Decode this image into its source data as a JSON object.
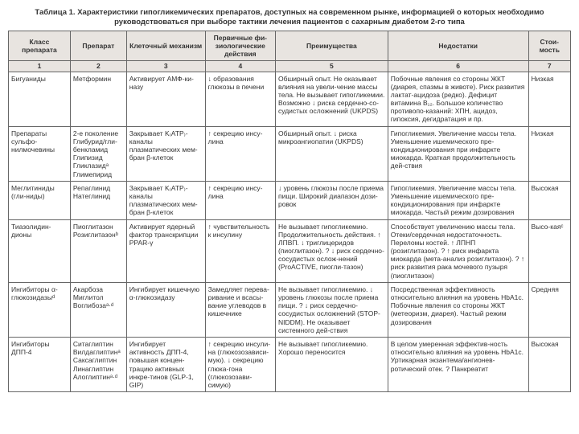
{
  "title_line1": "Таблица 1. Характеристики гипогликемических препаратов, доступных на современном рынке, информацией о которых необходимо",
  "title_line2": "руководствоваться при выборе тактики лечения пациентов с сахарным диабетом 2-го типа",
  "headers": {
    "c1": "Класс препарата",
    "c2": "Препарат",
    "c3": "Клеточный механизм",
    "c4": "Первичные фи-\nзиологические\nдействия",
    "c5": "Преимущества",
    "c6": "Недостатки",
    "c7": "Стои-\nмость"
  },
  "numrow": [
    "1",
    "2",
    "3",
    "4",
    "5",
    "6",
    "7"
  ],
  "rows": [
    {
      "c1": "Бигуаниды",
      "c2": "Метформин",
      "c3": "Активирует АМФ-ки-назу",
      "c4": "↓ образования глюкозы в печени",
      "c5": "Обширный опыт.\nНе оказывает влияния на увели-чение массы тела.\nНе вызывает гипогликемии.\nВозможно ↓ риска сердечно-со-судистых осложнений (UKPDS)",
      "c6": "Побочные явления со стороны ЖКТ (диарея, спазмы в животе).\nРиск развития лактат-ацидоза (редко).\nДефицит витамина B₁₂.\nБольшое количество противопо-казаний: ХПН, ацидоз, гипоксия, дегидратация и пр.",
      "c7": "Низкая"
    },
    {
      "c1": "Препараты сульфо-нилмочевины",
      "c2": "2-е поколение\nГлибурид/гли-бенкламид\nГлипизид\nГликлазидᵃ\nГлимепирид",
      "c3": "Закрывает K₍ATP₎-каналы плазматических мем-бран β-клеток",
      "c4": "↑ секрецию инсу-лина",
      "c5": "Обширный опыт.\n↓ риска микроангиопатии (UKPDS)",
      "c6": "Гипогликемия.\nУвеличение массы тела.\nУменьшение ишемического пре-кондиционирования при инфаркте миокарда.\nКраткая продолжительность дей-ствия",
      "c7": "Низкая"
    },
    {
      "c1": "Меглитиниды (гли-ниды)",
      "c2": "Репаглинид\nНатеглинид",
      "c3": "Закрывает K₍ATP₎-каналы плазматических мем-бран β-клеток",
      "c4": "↑ секрецию инсу-лина",
      "c5": "↓ уровень глюкозы после приема пищи. Широкий диапазон дози-ровок",
      "c6": "Гипогликемия.\nУвеличение массы тела.\nУменьшение ишемического пре-кондиционирования при инфаркте миокарда.\nЧастый режим дозирования",
      "c7": "Высокая"
    },
    {
      "c1": "Тиазолидин-дионы",
      "c2": "Пиоглитазон\nРозиглитазонᵇ",
      "c3": "Активирует ядерный фактор транскрипции PPAR-γ",
      "c4": "↑ чувствительность к инсулину",
      "c5": "Не вызывает гипогликемию.\nПродолжительность действия.\n↑ ЛПВП.\n↓ триглицеридов (пиоглитазон).\n? ↓ риск сердечно-сосудистых ослож-нений (ProACTIVE, пиогли-тазон)",
      "c6": "Способствует увеличению массы тела.\nОтеки/сердечная недостаточность.\nПереломы костей.\n↑ ЛПНП (розиглитазон).\n? ↑ риск инфаркта миокарда (мета-анализ розиглитазон).\n? ↑ риск развития рака мочевого пузыря (пиоглитазон)",
      "c7": "Высо-каяᶜ"
    },
    {
      "c1": "Ингибиторы α-глюкозидазыᵈ",
      "c2": "Акарбоза\nМиглитол\nВоглибозаᵃ·ᵈ",
      "c3": "Ингибирует кишечную α-глюкозидазу",
      "c4": "Замедляет перева-ривание и всасы-вание углеводов в кишечнике",
      "c5": "Не вызывает гипогликемию.\n↓ уровень глюкозы после приема пищи.\n? ↓ риск сердечно-сосудистых осложнений (STOP-NIDDM).\nНе оказывает системного дей-ствия",
      "c6": "Посредственная эффективность относительно влияния на уровень HbA1c.\nПобочные явления со стороны ЖКТ (метеоризм, диарея).\nЧастый режим дозирования",
      "c7": "Средняя"
    },
    {
      "c1": "Ингибиторы ДПП-4",
      "c2": "Ситаглиптин\nВилдаглиптинᵃ\nСаксаглиптин\nЛинаглиптин\nАлоглиптинᵃ·ᵈ",
      "c3": "Ингибирует активность ДПП-4, повышая концен-трацию активных инкре-тинов (GLP-1, GIP)",
      "c4": "↑ секрецию инсули-на (глюкозозависи-мую).\n↓ секрецию глюка-гона (глюкозозави-симую)",
      "c5": "Не вызывает гипогликемию.\nХорошо переносится",
      "c6": "В целом умеренная эффектив-ность относительно влияния на уровень HbA1c.\nУртикарная экзантема/ангионев-ротический отек.\n? Панкреатит",
      "c7": "Высокая"
    }
  ],
  "style": {
    "background_color": "#ffffff",
    "header_bg": "#e8e4e0",
    "border_color": "#666666",
    "text_color": "#333333",
    "font_size_body": 8.5,
    "font_size_title": 9.5
  }
}
